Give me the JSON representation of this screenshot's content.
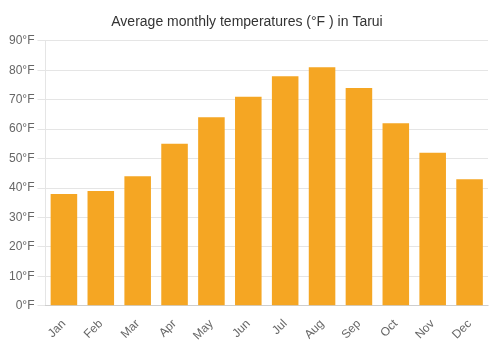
{
  "chart_data": {
    "type": "bar",
    "title": "Average monthly temperatures (°F ) in Tarui",
    "categories": [
      "Jan",
      "Feb",
      "Mar",
      "Apr",
      "May",
      "Jun",
      "Jul",
      "Aug",
      "Sep",
      "Oct",
      "Nov",
      "Dec"
    ],
    "values": [
      38,
      39,
      44,
      55,
      64,
      71,
      78,
      81,
      74,
      62,
      52,
      43
    ],
    "color": "#F5A623",
    "ylim": [
      0,
      90
    ],
    "yticks": [
      {
        "value": 0,
        "label": "0°F"
      },
      {
        "value": 10,
        "label": "10°F"
      },
      {
        "value": 20,
        "label": "20°F"
      },
      {
        "value": 30,
        "label": "30°F"
      },
      {
        "value": 40,
        "label": "40°F"
      },
      {
        "value": 50,
        "label": "50°F"
      },
      {
        "value": 60,
        "label": "60°F"
      },
      {
        "value": 70,
        "label": "70°F"
      },
      {
        "value": 80,
        "label": "80°F"
      },
      {
        "value": 90,
        "label": "90°F"
      }
    ],
    "grid": true
  }
}
